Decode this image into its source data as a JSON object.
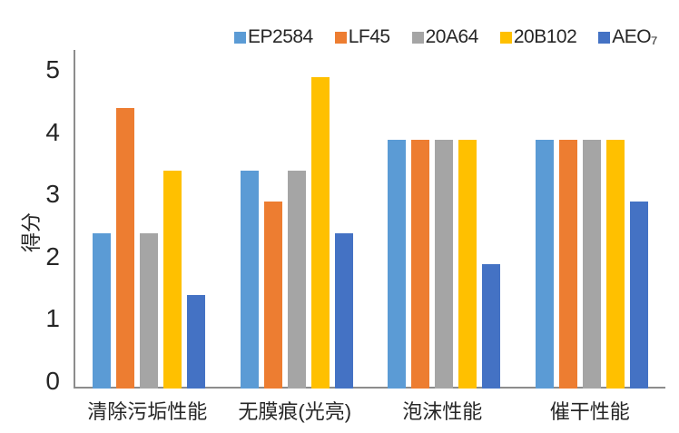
{
  "chart_data": {
    "type": "bar",
    "title": "",
    "xlabel": "",
    "ylabel": "得分",
    "ylim": [
      0,
      5
    ],
    "yticks": [
      0,
      1,
      2,
      3,
      4,
      5
    ],
    "grid": false,
    "legend_position": "top",
    "categories": [
      "清除污垢性能",
      "无膜痕(光亮)",
      "泡沫性能",
      "催干性能"
    ],
    "series": [
      {
        "name": "EP2584",
        "color": "#5B9BD5",
        "values": [
          2.5,
          3.5,
          4.0,
          4.0
        ]
      },
      {
        "name": "LF45",
        "color": "#ED7D31",
        "values": [
          4.5,
          3.0,
          4.0,
          4.0
        ]
      },
      {
        "name": "20A64",
        "color": "#A5A5A5",
        "values": [
          2.5,
          3.5,
          4.0,
          4.0
        ]
      },
      {
        "name": "20B102",
        "color": "#FFC000",
        "values": [
          3.5,
          5.0,
          4.0,
          4.0
        ]
      },
      {
        "name": "AEO₇",
        "color": "#4472C4",
        "values": [
          1.5,
          2.5,
          2.0,
          3.0
        ]
      }
    ],
    "axis_color": "#8C8C8C",
    "text_color": "#262626"
  }
}
